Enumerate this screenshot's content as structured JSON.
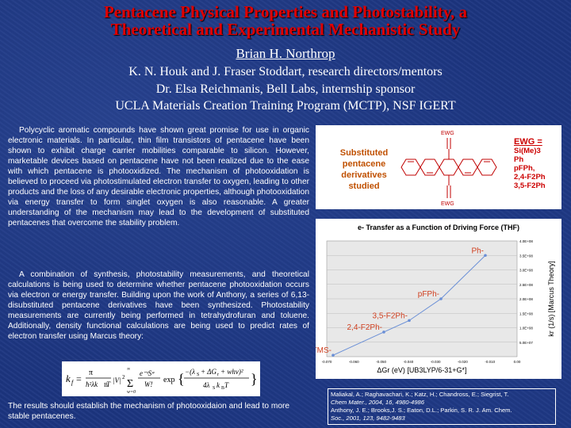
{
  "title": {
    "line1": "Pentacene Physical Properties and Photostability, a",
    "line2": "Theoretical and Experimental Mechanistic Study"
  },
  "author": "Brian H. Northrop",
  "credits": {
    "line1": "K. N. Houk and J. Fraser Stoddart, research directors/mentors",
    "line2": "Dr. Elsa Reichmanis, Bell Labs, internship sponsor",
    "line3": "UCLA Materials Creation Training Program (MCTP), NSF IGERT"
  },
  "body": {
    "p1": "Polycyclic aromatic compounds have shown great promise for use in organic electronic materials. In particular, thin film transistors of pentacene have been shown to exhibit charge carrier mobilities comparable to silicon. However, marketable devices based on pentacene have not been realized due to the ease with which pentacene is photooxidized. The mechanism of photooxidation is believed to proceed via photostimulated electron transfer to oxygen, leading to other products and the loss of any desirable electronic properties, although photooxidation via energy transfer to form singlet oxygen is also reasonable. A greater understanding of the mechanism may lead to the development of substituted pentacenes that overcome the stability problem.",
    "p2": "A combination of synthesis, photostability measurements, and theoretical calculations is being used to determine whether pentacene photooxidation occurs via electron or energy transfer. Building upon the work of Anthony, a series of 6,13-disubstituted pentacene derivatives have been synthesized. Photostability measurements are currently being performed in tetrahydrofuran and toluene. Additionally, density functional calculations are being used to predict rates of electron transfer using Marcus theory:",
    "p3": "The results should establish the mechanism of photooxidaion and lead to more stable pentacenes."
  },
  "molecule": {
    "label": "Substituted pentacene derivatives studied",
    "ewg_top": "EWG",
    "ewg_bottom": "EWG",
    "ewg_heading": "EWG =",
    "ewg_list": [
      "Si(Me)3",
      "Ph",
      "pFPh,",
      "2,4-F2Ph",
      "3,5-F2Ph"
    ]
  },
  "chart_data": {
    "type": "line",
    "title": "e- Transfer as a Function of Driving Force (THF)",
    "xlabel": "ΔGr (eV) [UB3LYP/6-31+G*]",
    "ylabel": "kr (1/s) [Marcus Theory]",
    "xlim": [
      -0.07,
      -0.01
    ],
    "ylim": [
      0,
      400000000.0
    ],
    "x_ticks": [
      "-0.070",
      "-0.060",
      "-0.050",
      "-0.040",
      "-0.030",
      "-0.020",
      "-0.010",
      "0.00"
    ],
    "y_ticks": [
      "5.0E+07",
      "1.0E+08",
      "1.5E+08",
      "2.0E+08",
      "2.5E+08",
      "3.0E+08",
      "3.5E+08",
      "4.0E+08"
    ],
    "points": [
      {
        "label": "TMS-",
        "x": -0.068,
        "y": 5000000.0
      },
      {
        "label": "2,4-F2Ph-",
        "x": -0.052,
        "y": 85000000.0
      },
      {
        "label": "3,5-F2Ph-",
        "x": -0.044,
        "y": 125000000.0
      },
      {
        "label": "pFPh-",
        "x": -0.034,
        "y": 200000000.0
      },
      {
        "label": "Ph-",
        "x": -0.02,
        "y": 350000000.0
      }
    ],
    "grid": true,
    "color": "#6a8fd6"
  },
  "references": {
    "r1a": "Maliakal, A.; Raghavachari, K.; Katz, H.; Chandross, E.; Siegrist, T.",
    "r1b": "Chem Mater., 2004, 16, 4980-4986",
    "r2a": "Anthony, J. E.; Brooks,J. S.; Eaton, D.L.; Parkin, S. R. J. Am. Chem.",
    "r2b": "Soc., 2001, 123, 9482-9483"
  },
  "colors": {
    "background": "#1c3580",
    "title": "#e00000",
    "molecule": "#c00000",
    "label": "#c05000"
  }
}
